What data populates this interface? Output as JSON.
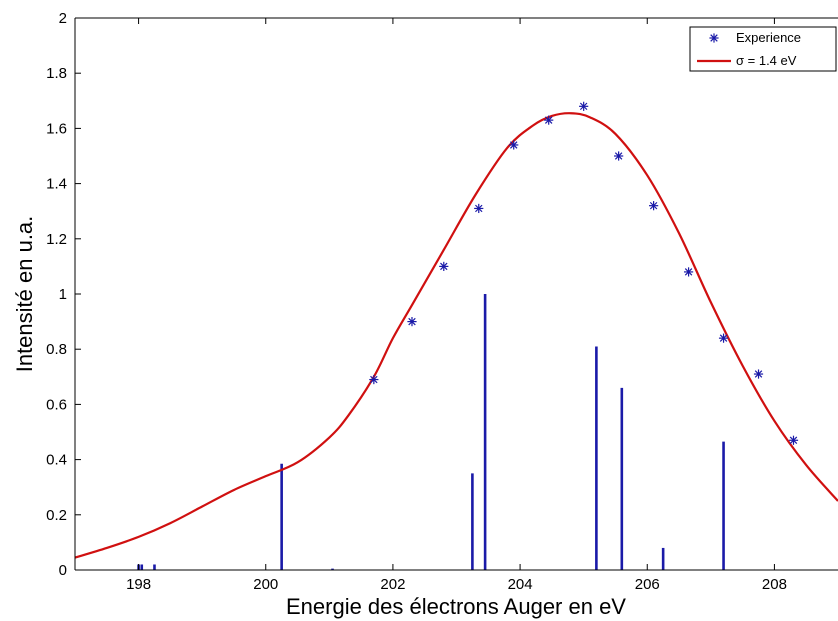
{
  "colors": {
    "curve": "#d01010",
    "markers": "#1a1aa8",
    "sticks": "#1a1aa8",
    "axes": "#000000",
    "background": "#ffffff"
  },
  "chart_data": {
    "type": "scatter",
    "title": "",
    "xlabel": "Energie des électrons Auger en eV",
    "ylabel": "Intensité en u.a.",
    "xlim": [
      197,
      209
    ],
    "ylim": [
      0,
      2
    ],
    "x_ticks": [
      198,
      200,
      202,
      204,
      206,
      208
    ],
    "y_ticks": [
      0,
      0.2,
      0.4,
      0.6,
      0.8,
      1,
      1.2,
      1.4,
      1.6,
      1.8,
      2
    ],
    "x_tick_labels": [
      "198",
      "200",
      "202",
      "204",
      "206",
      "208"
    ],
    "y_tick_labels": [
      "0",
      "0.2",
      "0.4",
      "0.6",
      "0.8",
      "1",
      "1.2",
      "1.4",
      "1.6",
      "1.8",
      "2"
    ],
    "grid": false,
    "legend": {
      "position": "top-right",
      "entries": [
        {
          "label": "Experience",
          "marker": "asterisk"
        },
        {
          "label": "σ = 1.4 eV",
          "marker": "line"
        }
      ]
    },
    "series": [
      {
        "name": "Experience",
        "kind": "scatter",
        "x": [
          201.7,
          202.3,
          202.8,
          203.35,
          203.9,
          204.45,
          205.0,
          205.55,
          206.1,
          206.65,
          207.2,
          207.75,
          208.3
        ],
        "y": [
          0.69,
          0.9,
          1.1,
          1.31,
          1.54,
          1.63,
          1.68,
          1.5,
          1.32,
          1.08,
          0.84,
          0.71,
          0.47
        ]
      },
      {
        "name": "σ = 1.4 eV",
        "kind": "line",
        "x": [
          197.0,
          197.5,
          198.0,
          198.5,
          199.0,
          199.5,
          200.0,
          200.5,
          201.0,
          201.3,
          201.7,
          202.0,
          202.3,
          202.8,
          203.3,
          203.8,
          204.2,
          204.5,
          204.8,
          205.1,
          205.5,
          206.0,
          206.5,
          207.0,
          207.5,
          208.0,
          208.5,
          209.0
        ],
        "y": [
          0.045,
          0.08,
          0.12,
          0.17,
          0.23,
          0.29,
          0.34,
          0.39,
          0.48,
          0.56,
          0.7,
          0.84,
          0.96,
          1.16,
          1.36,
          1.53,
          1.61,
          1.645,
          1.655,
          1.64,
          1.58,
          1.43,
          1.22,
          0.97,
          0.74,
          0.54,
          0.38,
          0.25
        ]
      },
      {
        "name": "",
        "kind": "stick",
        "x": [
          198.0,
          198.05,
          198.25,
          200.25,
          201.05,
          203.25,
          203.45,
          205.2,
          205.6,
          206.25,
          207.2
        ],
        "y": [
          0.02,
          0.02,
          0.02,
          0.385,
          0.005,
          0.35,
          1.0,
          0.81,
          0.66,
          0.08,
          0.465
        ]
      }
    ]
  }
}
